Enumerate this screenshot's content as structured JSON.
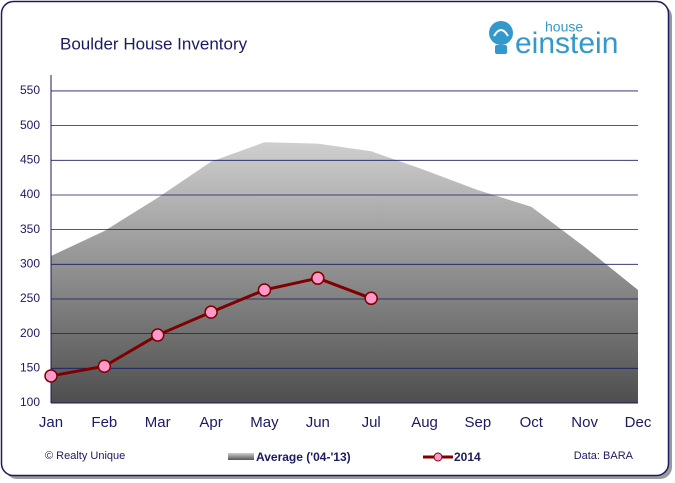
{
  "chart_data": {
    "type": "area-line",
    "title": "Boulder House Inventory",
    "categories": [
      "Jan",
      "Feb",
      "Mar",
      "Apr",
      "May",
      "Jun",
      "Jul",
      "Aug",
      "Sep",
      "Oct",
      "Nov",
      "Dec"
    ],
    "series": [
      {
        "name": "Average ('04-'13)",
        "type": "area",
        "color": "#9a9a9a",
        "values": [
          312,
          348,
          396,
          448,
          476,
          474,
          463,
          436,
          407,
          383,
          325,
          263
        ]
      },
      {
        "name": "2014",
        "type": "line",
        "color": "#800000",
        "marker_color": "#ff99cc",
        "values": [
          139,
          153,
          198,
          231,
          263,
          280,
          251,
          null,
          null,
          null,
          null,
          null
        ]
      }
    ],
    "ylim": [
      100,
      573
    ],
    "yticks": [
      100,
      150,
      200,
      250,
      300,
      350,
      400,
      450,
      500,
      550
    ],
    "grid": true
  },
  "logo": {
    "top": "house",
    "bottom": "einstein"
  },
  "footer": {
    "left": "© Realty Unique",
    "right": "Data: BARA"
  }
}
